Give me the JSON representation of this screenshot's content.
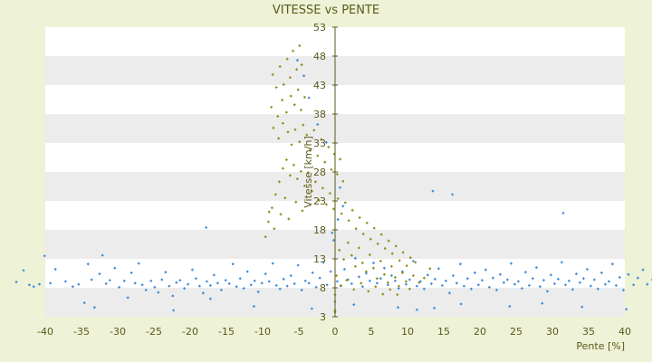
{
  "chart_data": {
    "type": "scatter",
    "title": "VITESSE vs PENTE",
    "xlabel": "Pente [%]",
    "ylabel": "Vitesse [km/h]",
    "xlim": [
      -40,
      40
    ],
    "ylim": [
      3,
      53
    ],
    "x_ticks": [
      -40,
      -35,
      -30,
      -25,
      -20,
      -15,
      -10,
      -5,
      0,
      5,
      10,
      15,
      20,
      25,
      30,
      35,
      40
    ],
    "y_ticks": [
      3,
      8,
      13,
      18,
      23,
      28,
      33,
      38,
      43,
      48,
      53
    ],
    "grid": "alternating horizontal bands",
    "legend": "none",
    "colors": {
      "background": "#eef2d6",
      "band": "#ececec",
      "blue_series": "#3c8ad8",
      "olive_series": "#8e8e1a",
      "axis": "#5a5a1a",
      "text": "#5a5a1a"
    },
    "series": [
      {
        "color": "#3c8ad8",
        "points": [
          [
            -44,
            9
          ],
          [
            -43,
            11
          ],
          [
            -42.2,
            8.5
          ],
          [
            -41.6,
            8.2
          ],
          [
            -40.8,
            8.6
          ],
          [
            -40.1,
            13.5
          ],
          [
            -39.3,
            8.8
          ],
          [
            -38.6,
            11.2
          ],
          [
            -37.2,
            9.1
          ],
          [
            -36.2,
            8.2
          ],
          [
            -35.4,
            8.6
          ],
          [
            -34.6,
            5.4
          ],
          [
            -34.1,
            12.1
          ],
          [
            -33.6,
            9.4
          ],
          [
            -33.2,
            4.6
          ],
          [
            -32.5,
            10.4
          ],
          [
            -32.1,
            13.6
          ],
          [
            -31.6,
            8.7
          ],
          [
            -31.1,
            9.3
          ],
          [
            -30.4,
            11.4
          ],
          [
            -29.8,
            8.1
          ],
          [
            -29.1,
            9.2
          ],
          [
            -28.6,
            6.3
          ],
          [
            -28.1,
            10.6
          ],
          [
            -27.6,
            8.8
          ],
          [
            -27.1,
            12.2
          ],
          [
            -26.6,
            8.5
          ],
          [
            -26.1,
            7.6
          ],
          [
            -25.4,
            9.2
          ],
          [
            -24.9,
            8.1
          ],
          [
            -24.4,
            7.2
          ],
          [
            -23.9,
            9.4
          ],
          [
            -23.4,
            10.7
          ],
          [
            -22.9,
            8.3
          ],
          [
            -22.4,
            6.6
          ],
          [
            -21.9,
            8.9
          ],
          [
            -21.4,
            9.3
          ],
          [
            -20.8,
            7.9
          ],
          [
            -20.3,
            8.6
          ],
          [
            -19.7,
            11.1
          ],
          [
            -19.2,
            9.6
          ],
          [
            -18.7,
            8.3
          ],
          [
            -18.2,
            7.1
          ],
          [
            -17.7,
            9.1
          ],
          [
            -17.2,
            8.4
          ],
          [
            -16.7,
            10.2
          ],
          [
            -16.2,
            8.8
          ],
          [
            -15.7,
            7.6
          ],
          [
            -15.1,
            9.3
          ],
          [
            -14.6,
            8.7
          ],
          [
            -14.1,
            12.1
          ],
          [
            -13.6,
            8.2
          ],
          [
            -13.1,
            9.6
          ],
          [
            -12.6,
            7.9
          ],
          [
            -12.1,
            10.8
          ],
          [
            -11.6,
            8.5
          ],
          [
            -11.1,
            9.2
          ],
          [
            -10.6,
            7.3
          ],
          [
            -10.1,
            8.8
          ],
          [
            -9.6,
            10.4
          ],
          [
            -9.1,
            9.1
          ],
          [
            -8.6,
            12.2
          ],
          [
            -8.1,
            8.4
          ],
          [
            -7.6,
            7.8
          ],
          [
            -7.1,
            9.5
          ],
          [
            -6.6,
            8.3
          ],
          [
            -6.1,
            10.1
          ],
          [
            -5.6,
            8.7
          ],
          [
            -5.1,
            11.9
          ],
          [
            -4.6,
            7.6
          ],
          [
            -4.1,
            9.2
          ],
          [
            -3.6,
            8.8
          ],
          [
            -3.1,
            10.6
          ],
          [
            -2.6,
            8.1
          ],
          [
            -2.1,
            9.7
          ],
          [
            -1.6,
            12.4
          ],
          [
            -1.1,
            8.5
          ],
          [
            -0.6,
            10.8
          ],
          [
            -0.2,
            16.2
          ],
          [
            0.3,
            9.1
          ],
          [
            0.8,
            8.3
          ],
          [
            1.3,
            11.2
          ],
          [
            1.8,
            9.4
          ],
          [
            2.3,
            8.7
          ],
          [
            2.8,
            13.1
          ],
          [
            3.3,
            9.9
          ],
          [
            3.8,
            8.2
          ],
          [
            4.3,
            10.5
          ],
          [
            4.8,
            9.2
          ],
          [
            5.3,
            12.3
          ],
          [
            5.8,
            8.8
          ],
          [
            6.3,
            9.6
          ],
          [
            6.8,
            11.4
          ],
          [
            7.3,
            8.5
          ],
          [
            7.8,
            10.1
          ],
          [
            8.3,
            9.2
          ],
          [
            8.8,
            7.9
          ],
          [
            9.3,
            10.8
          ],
          [
            9.8,
            8.6
          ],
          [
            10.3,
            9.4
          ],
          [
            10.8,
            12.6
          ],
          [
            11.3,
            8.3
          ],
          [
            11.8,
            9.1
          ],
          [
            12.3,
            7.8
          ],
          [
            12.8,
            10.2
          ],
          [
            13.3,
            8.7
          ],
          [
            13.8,
            9.5
          ],
          [
            14.3,
            11.3
          ],
          [
            14.8,
            8.4
          ],
          [
            15.3,
            9.2
          ],
          [
            15.8,
            7.1
          ],
          [
            16.3,
            10.1
          ],
          [
            16.8,
            8.8
          ],
          [
            17.3,
            12.1
          ],
          [
            17.8,
            8.3
          ],
          [
            18.3,
            9.6
          ],
          [
            18.8,
            7.8
          ],
          [
            19.3,
            10.6
          ],
          [
            19.8,
            8.5
          ],
          [
            20.3,
            9.3
          ],
          [
            20.8,
            11.1
          ],
          [
            21.3,
            8.1
          ],
          [
            21.8,
            9.7
          ],
          [
            22.3,
            7.6
          ],
          [
            22.8,
            10.3
          ],
          [
            23.3,
            8.9
          ],
          [
            23.8,
            9.4
          ],
          [
            24.3,
            12.2
          ],
          [
            24.8,
            8.6
          ],
          [
            25.3,
            9.1
          ],
          [
            25.8,
            7.9
          ],
          [
            26.3,
            10.7
          ],
          [
            26.8,
            8.4
          ],
          [
            27.3,
            9.6
          ],
          [
            27.8,
            11.5
          ],
          [
            28.3,
            8.2
          ],
          [
            28.8,
            9.3
          ],
          [
            29.3,
            7.4
          ],
          [
            29.8,
            10.2
          ],
          [
            30.3,
            8.7
          ],
          [
            30.8,
            9.5
          ],
          [
            31.3,
            12.4
          ],
          [
            31.8,
            8.5
          ],
          [
            32.3,
            9.2
          ],
          [
            32.8,
            7.7
          ],
          [
            33.3,
            10.4
          ],
          [
            33.8,
            8.9
          ],
          [
            34.3,
            9.6
          ],
          [
            34.8,
            11.2
          ],
          [
            35.3,
            8.3
          ],
          [
            35.8,
            9.4
          ],
          [
            36.3,
            7.8
          ],
          [
            36.8,
            10.6
          ],
          [
            37.3,
            8.6
          ],
          [
            37.8,
            9.1
          ],
          [
            38.3,
            12.1
          ],
          [
            38.8,
            8.4
          ],
          [
            39.3,
            9.8
          ],
          [
            39.8,
            7.6
          ],
          [
            40.5,
            10.3
          ],
          [
            41.2,
            8.5
          ],
          [
            41.8,
            9.7
          ],
          [
            42.5,
            11.1
          ],
          [
            43.1,
            8.6
          ],
          [
            43.8,
            9.4
          ],
          [
            -17.8,
            18.4
          ],
          [
            13.5,
            24.7
          ],
          [
            16.2,
            24.1
          ],
          [
            31.5,
            20.9
          ],
          [
            -22.3,
            4.1
          ],
          [
            -17.2,
            6.1
          ],
          [
            -11.2,
            4.8
          ],
          [
            -3.2,
            4.4
          ],
          [
            2.6,
            5.1
          ],
          [
            8.7,
            4.6
          ],
          [
            11.3,
            4.2
          ],
          [
            13.7,
            4.5
          ],
          [
            17.4,
            5.2
          ],
          [
            24.1,
            4.8
          ],
          [
            28.6,
            5.3
          ],
          [
            34.1,
            4.7
          ],
          [
            40.2,
            4.3
          ],
          [
            1.1,
            22.1
          ],
          [
            0.7,
            25.3
          ],
          [
            0.4,
            19.8
          ],
          [
            -0.4,
            17.5
          ],
          [
            -1.2,
            33.1
          ],
          [
            -2.4,
            36.2
          ],
          [
            -3.6,
            40.8
          ],
          [
            -4.3,
            44.6
          ],
          [
            -5.2,
            47.3
          ]
        ]
      },
      {
        "color": "#8e8e1a",
        "points": [
          [
            -8.6,
            44.8
          ],
          [
            -8.1,
            42.6
          ],
          [
            -7.6,
            46.2
          ],
          [
            -7.1,
            43.1
          ],
          [
            -6.6,
            47.5
          ],
          [
            -6.2,
            44.3
          ],
          [
            -5.8,
            48.9
          ],
          [
            -5.3,
            45.7
          ],
          [
            -4.9,
            49.8
          ],
          [
            -4.6,
            46.5
          ],
          [
            -8.8,
            39.2
          ],
          [
            -7.9,
            37.6
          ],
          [
            -7.3,
            40.4
          ],
          [
            -6.7,
            38.3
          ],
          [
            -6.1,
            41.1
          ],
          [
            -5.6,
            39.6
          ],
          [
            -5.1,
            42.2
          ],
          [
            -4.7,
            38.7
          ],
          [
            -4.2,
            40.9
          ],
          [
            -8.5,
            35.6
          ],
          [
            -7.8,
            33.8
          ],
          [
            -7.2,
            36.4
          ],
          [
            -6.5,
            34.9
          ],
          [
            -6.0,
            32.7
          ],
          [
            -5.5,
            35.3
          ],
          [
            -4.9,
            33.2
          ],
          [
            -4.4,
            36.1
          ],
          [
            -3.9,
            34.4
          ],
          [
            -3.4,
            31.9
          ],
          [
            -2.9,
            35.2
          ],
          [
            -2.4,
            30.8
          ],
          [
            -1.9,
            33.6
          ],
          [
            -1.4,
            29.7
          ],
          [
            -0.9,
            32.3
          ],
          [
            -0.5,
            28.4
          ],
          [
            -0.1,
            31.1
          ],
          [
            0.3,
            27.6
          ],
          [
            0.7,
            30.2
          ],
          [
            1.1,
            26.4
          ],
          [
            -9.2,
            19.4
          ],
          [
            -8.7,
            21.8
          ],
          [
            -8.2,
            24.1
          ],
          [
            -7.7,
            26.3
          ],
          [
            -7.2,
            28.6
          ],
          [
            -6.7,
            30.1
          ],
          [
            -6.2,
            27.4
          ],
          [
            -5.7,
            29.2
          ],
          [
            -5.2,
            26.8
          ],
          [
            -4.7,
            28.1
          ],
          [
            -4.2,
            25.6
          ],
          [
            -3.7,
            27.9
          ],
          [
            -3.2,
            24.7
          ],
          [
            -2.7,
            26.3
          ],
          [
            -2.2,
            23.1
          ],
          [
            -1.7,
            25.2
          ],
          [
            -1.2,
            22.4
          ],
          [
            -0.7,
            24.3
          ],
          [
            -0.2,
            21.6
          ],
          [
            0.4,
            23.4
          ],
          [
            0.9,
            20.8
          ],
          [
            1.4,
            22.7
          ],
          [
            1.9,
            19.6
          ],
          [
            2.4,
            21.4
          ],
          [
            2.9,
            18.2
          ],
          [
            3.4,
            20.1
          ],
          [
            3.9,
            17.3
          ],
          [
            4.4,
            19.2
          ],
          [
            4.9,
            16.4
          ],
          [
            5.4,
            18.3
          ],
          [
            5.9,
            15.6
          ],
          [
            6.4,
            17.2
          ],
          [
            6.9,
            14.8
          ],
          [
            7.4,
            16.1
          ],
          [
            7.9,
            13.9
          ],
          [
            8.4,
            15.2
          ],
          [
            8.9,
            12.7
          ],
          [
            9.4,
            14.1
          ],
          [
            9.9,
            11.8
          ],
          [
            10.4,
            13.2
          ],
          [
            11.1,
            12.4
          ],
          [
            0.6,
            14.5
          ],
          [
            1.2,
            12.9
          ],
          [
            1.8,
            15.8
          ],
          [
            2.3,
            13.6
          ],
          [
            2.8,
            11.7
          ],
          [
            3.3,
            14.9
          ],
          [
            3.8,
            12.3
          ],
          [
            4.3,
            10.8
          ],
          [
            4.8,
            13.7
          ],
          [
            5.3,
            11.4
          ],
          [
            5.8,
            9.6
          ],
          [
            6.3,
            12.6
          ],
          [
            6.8,
            10.3
          ],
          [
            7.3,
            8.9
          ],
          [
            7.8,
            11.7
          ],
          [
            8.3,
            9.8
          ],
          [
            8.8,
            8.3
          ],
          [
            9.3,
            10.6
          ],
          [
            9.8,
            9.1
          ],
          [
            10.3,
            7.8
          ],
          [
            10.8,
            10.1
          ],
          [
            11.6,
            8.9
          ],
          [
            12.3,
            9.7
          ],
          [
            13.1,
            11.3
          ],
          [
            0.2,
            10.1
          ],
          [
            0.8,
            8.4
          ],
          [
            1.6,
            9.3
          ],
          [
            2.6,
            7.7
          ],
          [
            3.6,
            8.8
          ],
          [
            4.6,
            7.4
          ],
          [
            5.6,
            8.2
          ],
          [
            6.6,
            6.9
          ],
          [
            7.6,
            7.7
          ],
          [
            8.6,
            6.8
          ],
          [
            -9.6,
            16.8
          ],
          [
            -9.1,
            21.1
          ],
          [
            -8.4,
            18.2
          ],
          [
            -7.5,
            20.7
          ],
          [
            -6.9,
            23.5
          ],
          [
            -6.4,
            19.9
          ],
          [
            -5.4,
            22.8
          ],
          [
            -4.5,
            21.3
          ],
          [
            0,
            4.1
          ],
          [
            0,
            5.6
          ],
          [
            0,
            6.8
          ],
          [
            0,
            3.8
          ]
        ]
      }
    ]
  }
}
